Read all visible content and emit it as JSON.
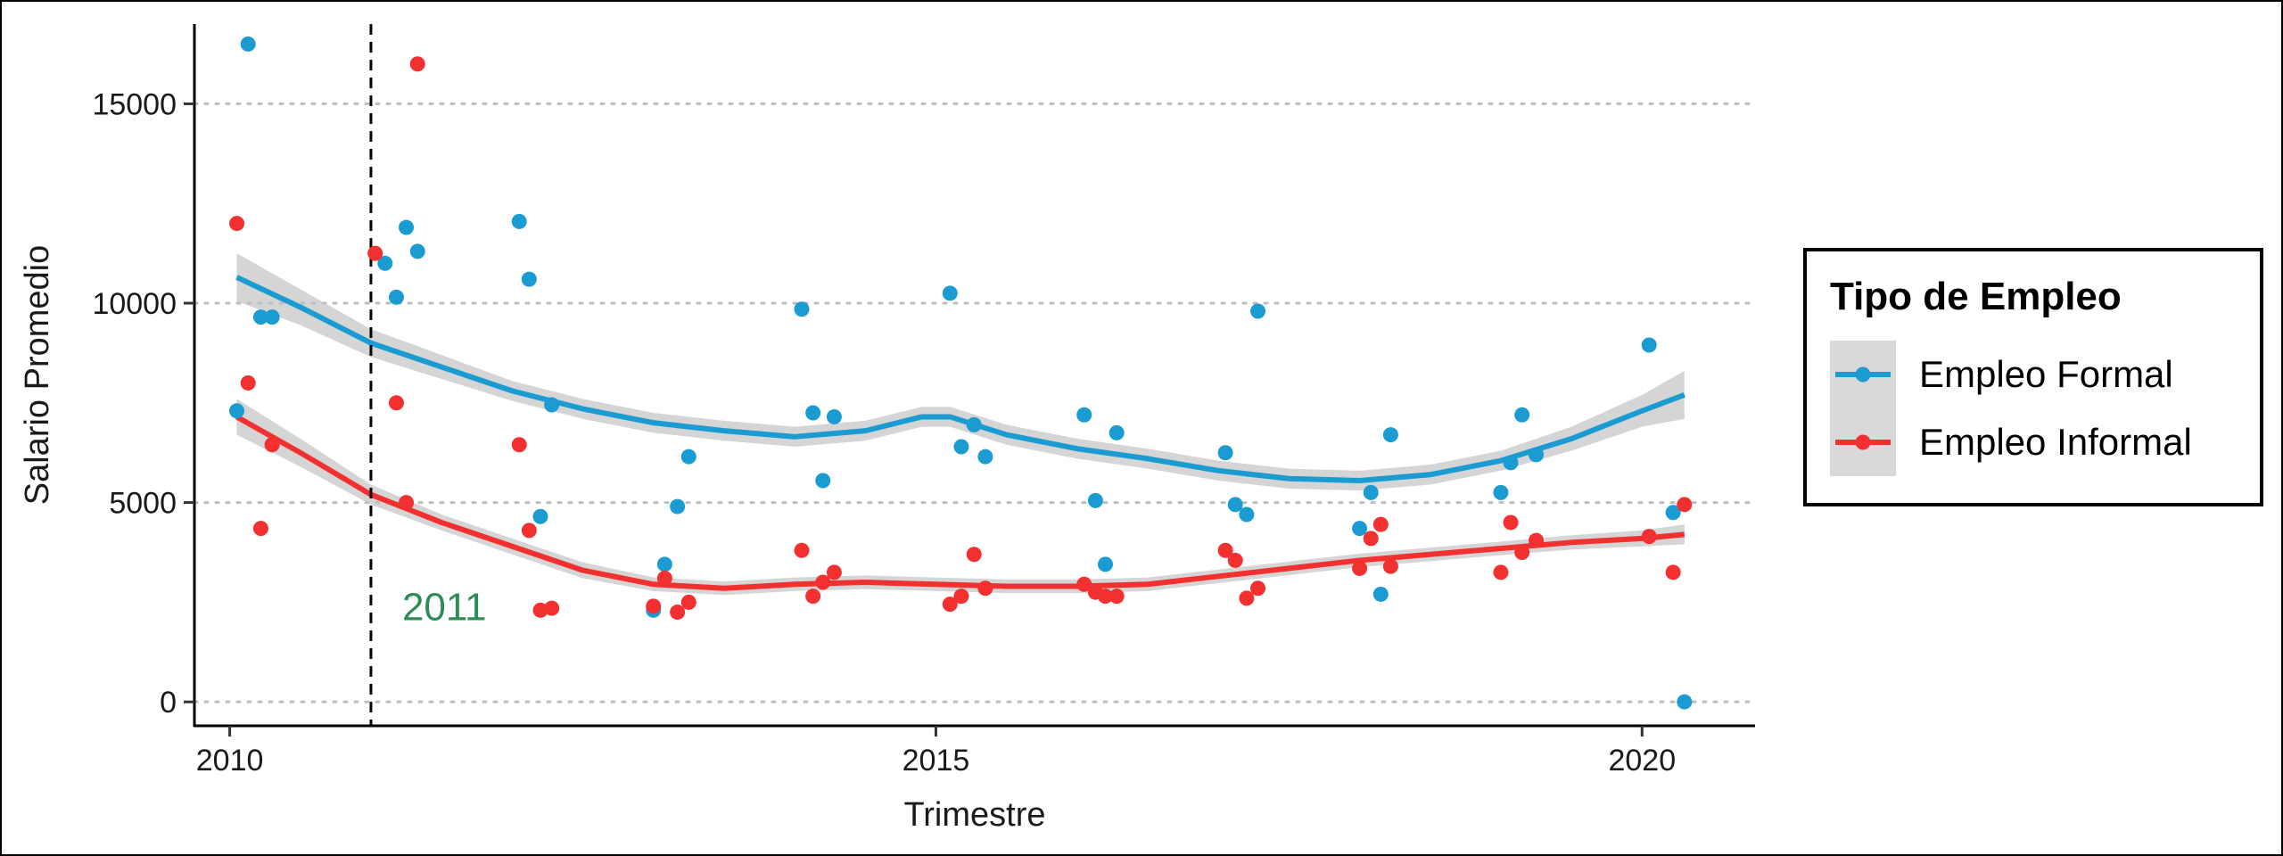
{
  "chart_data": {
    "type": "scatter",
    "title": "",
    "xlabel": "Trimestre",
    "ylabel": "Salario Promedio",
    "xlim": [
      2009.75,
      2020.8
    ],
    "ylim": [
      -600,
      17000
    ],
    "xticks": [
      2010,
      2015,
      2020
    ],
    "yticks": [
      0,
      5000,
      10000,
      15000
    ],
    "grid": "horizontal-dotted",
    "legend": {
      "title": "Tipo de Empleo",
      "position": "right"
    },
    "vline": {
      "x": 2011,
      "label": "2011",
      "label_color": "#2e8b57",
      "style": "dashed"
    },
    "series": [
      {
        "name": "Empleo Formal",
        "color": "#1a9bd1",
        "points": [
          [
            2010.05,
            7300
          ],
          [
            2010.13,
            16500
          ],
          [
            2010.22,
            9650
          ],
          [
            2010.3,
            9650
          ],
          [
            2011.1,
            11000
          ],
          [
            2011.18,
            10150
          ],
          [
            2011.25,
            11900
          ],
          [
            2011.33,
            11300
          ],
          [
            2012.05,
            12050
          ],
          [
            2012.12,
            10600
          ],
          [
            2012.2,
            4650
          ],
          [
            2012.28,
            7450
          ],
          [
            2013.0,
            2300
          ],
          [
            2013.08,
            3450
          ],
          [
            2013.17,
            4900
          ],
          [
            2013.25,
            6150
          ],
          [
            2014.05,
            9850
          ],
          [
            2014.13,
            7250
          ],
          [
            2014.2,
            5550
          ],
          [
            2014.28,
            7150
          ],
          [
            2015.1,
            10250
          ],
          [
            2015.18,
            6400
          ],
          [
            2015.27,
            6950
          ],
          [
            2015.35,
            6150
          ],
          [
            2016.05,
            7200
          ],
          [
            2016.13,
            5050
          ],
          [
            2016.2,
            3450
          ],
          [
            2016.28,
            6750
          ],
          [
            2017.05,
            6250
          ],
          [
            2017.12,
            4950
          ],
          [
            2017.2,
            4700
          ],
          [
            2017.28,
            9800
          ],
          [
            2018.0,
            4350
          ],
          [
            2018.08,
            5250
          ],
          [
            2018.15,
            2700
          ],
          [
            2018.22,
            6700
          ],
          [
            2019.0,
            5250
          ],
          [
            2019.07,
            6000
          ],
          [
            2019.15,
            7200
          ],
          [
            2019.25,
            6200
          ],
          [
            2020.05,
            8950
          ],
          [
            2020.22,
            4750
          ],
          [
            2020.3,
            0
          ]
        ],
        "smooth": [
          [
            2010.05,
            10650
          ],
          [
            2010.5,
            9900
          ],
          [
            2011.0,
            9000
          ],
          [
            2011.5,
            8400
          ],
          [
            2012.0,
            7800
          ],
          [
            2012.5,
            7350
          ],
          [
            2013.0,
            7000
          ],
          [
            2013.5,
            6800
          ],
          [
            2014.0,
            6650
          ],
          [
            2014.5,
            6800
          ],
          [
            2014.9,
            7150
          ],
          [
            2015.1,
            7150
          ],
          [
            2015.5,
            6700
          ],
          [
            2016.0,
            6350
          ],
          [
            2016.5,
            6100
          ],
          [
            2017.0,
            5800
          ],
          [
            2017.5,
            5600
          ],
          [
            2018.0,
            5550
          ],
          [
            2018.5,
            5700
          ],
          [
            2019.0,
            6050
          ],
          [
            2019.5,
            6600
          ],
          [
            2020.0,
            7300
          ],
          [
            2020.3,
            7700
          ]
        ],
        "band": [
          [
            2010.05,
            10050,
            11250
          ],
          [
            2010.5,
            9450,
            10350
          ],
          [
            2011.0,
            8650,
            9350
          ],
          [
            2011.5,
            8100,
            8700
          ],
          [
            2012.0,
            7550,
            8050
          ],
          [
            2012.5,
            7100,
            7600
          ],
          [
            2013.0,
            6750,
            7250
          ],
          [
            2013.5,
            6550,
            7050
          ],
          [
            2014.0,
            6400,
            6900
          ],
          [
            2014.5,
            6550,
            7050
          ],
          [
            2014.9,
            6900,
            7400
          ],
          [
            2015.1,
            6900,
            7400
          ],
          [
            2015.5,
            6450,
            6950
          ],
          [
            2016.0,
            6100,
            6600
          ],
          [
            2016.5,
            5850,
            6350
          ],
          [
            2017.0,
            5550,
            6050
          ],
          [
            2017.5,
            5350,
            5850
          ],
          [
            2018.0,
            5300,
            5800
          ],
          [
            2018.5,
            5450,
            5950
          ],
          [
            2019.0,
            5800,
            6300
          ],
          [
            2019.5,
            6300,
            6900
          ],
          [
            2020.0,
            6900,
            7700
          ],
          [
            2020.3,
            7100,
            8300
          ]
        ]
      },
      {
        "name": "Empleo Informal",
        "color": "#f23030",
        "points": [
          [
            2010.05,
            12000
          ],
          [
            2010.13,
            8000
          ],
          [
            2010.22,
            4350
          ],
          [
            2010.3,
            6450
          ],
          [
            2011.03,
            11250
          ],
          [
            2011.18,
            7500
          ],
          [
            2011.25,
            5000
          ],
          [
            2011.33,
            16000
          ],
          [
            2012.05,
            6450
          ],
          [
            2012.12,
            4300
          ],
          [
            2012.2,
            2300
          ],
          [
            2012.28,
            2350
          ],
          [
            2013.0,
            2400
          ],
          [
            2013.08,
            3100
          ],
          [
            2013.17,
            2250
          ],
          [
            2013.25,
            2500
          ],
          [
            2014.05,
            3800
          ],
          [
            2014.13,
            2650
          ],
          [
            2014.2,
            3000
          ],
          [
            2014.28,
            3250
          ],
          [
            2015.1,
            2450
          ],
          [
            2015.18,
            2650
          ],
          [
            2015.27,
            3700
          ],
          [
            2015.35,
            2850
          ],
          [
            2016.05,
            2950
          ],
          [
            2016.13,
            2750
          ],
          [
            2016.2,
            2650
          ],
          [
            2016.28,
            2650
          ],
          [
            2017.05,
            3800
          ],
          [
            2017.12,
            3550
          ],
          [
            2017.2,
            2600
          ],
          [
            2017.28,
            2850
          ],
          [
            2018.0,
            3350
          ],
          [
            2018.08,
            4100
          ],
          [
            2018.15,
            4450
          ],
          [
            2018.22,
            3400
          ],
          [
            2019.0,
            3250
          ],
          [
            2019.07,
            4500
          ],
          [
            2019.15,
            3750
          ],
          [
            2019.25,
            4050
          ],
          [
            2020.05,
            4150
          ],
          [
            2020.22,
            3250
          ],
          [
            2020.3,
            4950
          ]
        ],
        "smooth": [
          [
            2010.05,
            7150
          ],
          [
            2010.5,
            6250
          ],
          [
            2011.0,
            5200
          ],
          [
            2011.5,
            4500
          ],
          [
            2012.0,
            3900
          ],
          [
            2012.5,
            3300
          ],
          [
            2013.0,
            2950
          ],
          [
            2013.5,
            2850
          ],
          [
            2014.0,
            2950
          ],
          [
            2014.5,
            3000
          ],
          [
            2015.0,
            2950
          ],
          [
            2015.5,
            2900
          ],
          [
            2016.0,
            2900
          ],
          [
            2016.5,
            2950
          ],
          [
            2017.0,
            3150
          ],
          [
            2017.5,
            3350
          ],
          [
            2018.0,
            3550
          ],
          [
            2018.5,
            3700
          ],
          [
            2019.0,
            3850
          ],
          [
            2019.5,
            4000
          ],
          [
            2020.0,
            4100
          ],
          [
            2020.3,
            4200
          ]
        ],
        "band": [
          [
            2010.05,
            6700,
            7600
          ],
          [
            2010.5,
            5900,
            6600
          ],
          [
            2011.0,
            4950,
            5450
          ],
          [
            2011.5,
            4300,
            4700
          ],
          [
            2012.0,
            3700,
            4100
          ],
          [
            2012.5,
            3100,
            3500
          ],
          [
            2013.0,
            2780,
            3120
          ],
          [
            2013.5,
            2680,
            3020
          ],
          [
            2014.0,
            2780,
            3120
          ],
          [
            2014.5,
            2830,
            3170
          ],
          [
            2015.0,
            2780,
            3120
          ],
          [
            2015.5,
            2730,
            3070
          ],
          [
            2016.0,
            2730,
            3070
          ],
          [
            2016.5,
            2780,
            3120
          ],
          [
            2017.0,
            2980,
            3320
          ],
          [
            2017.5,
            3180,
            3520
          ],
          [
            2018.0,
            3380,
            3720
          ],
          [
            2018.5,
            3530,
            3870
          ],
          [
            2019.0,
            3680,
            4020
          ],
          [
            2019.5,
            3820,
            4180
          ],
          [
            2020.0,
            3900,
            4300
          ],
          [
            2020.3,
            3950,
            4450
          ]
        ]
      }
    ]
  }
}
